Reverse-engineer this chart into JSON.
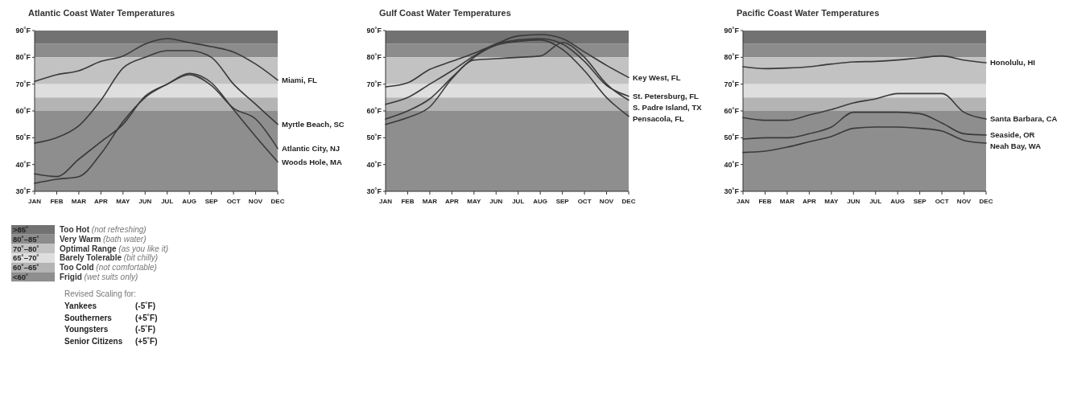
{
  "chart_data": [
    {
      "type": "line",
      "title": "Atlantic Coast Water Temperatures",
      "categories": [
        "JAN",
        "FEB",
        "MAR",
        "APR",
        "MAY",
        "JUN",
        "JUL",
        "AUG",
        "SEP",
        "OCT",
        "NOV",
        "DEC"
      ],
      "ylim": [
        30,
        90
      ],
      "yticks": [
        {
          "value": 30,
          "label": "30˚F"
        },
        {
          "value": 40,
          "label": "40˚F"
        },
        {
          "value": 50,
          "label": "50˚F"
        },
        {
          "value": 60,
          "label": "60˚F"
        },
        {
          "value": 70,
          "label": "70˚F"
        },
        {
          "value": 80,
          "label": "80˚F"
        },
        {
          "value": 90,
          "label": "90˚F"
        }
      ],
      "bands": [
        {
          "axis": "y",
          "from": 85,
          "to": 90,
          "label": ">85˚",
          "color": "#727272"
        },
        {
          "axis": "y",
          "from": 80,
          "to": 85,
          "label": "80˚–85˚",
          "color": "#8c8c8c"
        },
        {
          "axis": "y",
          "from": 70,
          "to": 80,
          "label": "70˚–80˚",
          "color": "#c2c2c2"
        },
        {
          "axis": "y",
          "from": 65,
          "to": 70,
          "label": "65˚–70˚",
          "color": "#dedede"
        },
        {
          "axis": "y",
          "from": 60,
          "to": 65,
          "label": "60˚–65˚",
          "color": "#b4b4b4"
        },
        {
          "axis": "y",
          "from": 30,
          "to": 60,
          "label": "<60˚",
          "color": "#8e8e8e"
        }
      ],
      "series": [
        {
          "name": "Miami, FL",
          "color": "#3a3a3a",
          "values": [
            71,
            73.5,
            75,
            78.5,
            80.5,
            85,
            87,
            85.5,
            84,
            82,
            77.5,
            71.5
          ]
        },
        {
          "name": "Myrtle Beach, SC",
          "color": "#3a3a3a",
          "values": [
            48,
            50,
            54.5,
            64,
            76,
            80,
            82.5,
            82.5,
            80,
            70,
            62.5,
            55
          ]
        },
        {
          "name": "Atlantic City, NJ",
          "color": "#3a3a3a",
          "values": [
            36.5,
            35.5,
            42,
            48.5,
            55,
            65.5,
            70,
            73.5,
            69.5,
            61,
            57,
            46
          ]
        },
        {
          "name": "Woods Hole, MA",
          "color": "#3a3a3a",
          "values": [
            33,
            34.5,
            35.5,
            44,
            56,
            65,
            70,
            74,
            70.5,
            60.5,
            50.5,
            41
          ]
        }
      ]
    },
    {
      "type": "line",
      "title": "Gulf Coast Water Temperatures",
      "categories": [
        "JAN",
        "FEB",
        "MAR",
        "APR",
        "MAY",
        "JUN",
        "JUL",
        "AUG",
        "SEP",
        "OCT",
        "NOV",
        "DEC"
      ],
      "ylim": [
        30,
        90
      ],
      "yticks": [
        {
          "value": 30,
          "label": "30˚F"
        },
        {
          "value": 40,
          "label": "40˚F"
        },
        {
          "value": 50,
          "label": "50˚F"
        },
        {
          "value": 60,
          "label": "60˚F"
        },
        {
          "value": 70,
          "label": "70˚F"
        },
        {
          "value": 80,
          "label": "80˚F"
        },
        {
          "value": 90,
          "label": "90˚F"
        }
      ],
      "bands": [
        {
          "axis": "y",
          "from": 85,
          "to": 90,
          "color": "#727272"
        },
        {
          "axis": "y",
          "from": 80,
          "to": 85,
          "color": "#8c8c8c"
        },
        {
          "axis": "y",
          "from": 70,
          "to": 80,
          "color": "#c2c2c2"
        },
        {
          "axis": "y",
          "from": 65,
          "to": 70,
          "color": "#dedede"
        },
        {
          "axis": "y",
          "from": 60,
          "to": 65,
          "color": "#b4b4b4"
        },
        {
          "axis": "y",
          "from": 30,
          "to": 60,
          "color": "#8e8e8e"
        }
      ],
      "series": [
        {
          "name": "Key West, FL",
          "color": "#3a3a3a",
          "values": [
            69,
            70.5,
            75.5,
            78.5,
            81.5,
            85,
            88,
            88.5,
            87,
            82,
            77,
            72.5
          ]
        },
        {
          "name": "St. Petersburg, FL",
          "color": "#3a3a3a",
          "values": [
            62.5,
            65,
            70,
            75,
            80.5,
            85,
            86.5,
            87,
            85,
            78.5,
            69.5,
            65.5
          ]
        },
        {
          "name": "S. Padre Island, TX",
          "color": "#3a3a3a",
          "values": [
            55,
            57.5,
            61.5,
            72,
            79,
            79.5,
            80,
            80.5,
            85.5,
            80,
            70,
            64
          ]
        },
        {
          "name": "Pensacola, FL",
          "color": "#3a3a3a",
          "values": [
            57,
            60,
            64.5,
            72.5,
            80,
            84.5,
            86,
            86.5,
            83,
            75,
            65,
            58
          ]
        }
      ]
    },
    {
      "type": "line",
      "title": "Pacific Coast Water Temperatures",
      "categories": [
        "JAN",
        "FEB",
        "MAR",
        "APR",
        "MAY",
        "JUN",
        "JUL",
        "AUG",
        "SEP",
        "OCT",
        "NOV",
        "DEC"
      ],
      "ylim": [
        30,
        90
      ],
      "yticks": [
        {
          "value": 30,
          "label": "30˚F"
        },
        {
          "value": 40,
          "label": "40˚F"
        },
        {
          "value": 50,
          "label": "50˚F"
        },
        {
          "value": 60,
          "label": "60˚F"
        },
        {
          "value": 70,
          "label": "70˚F"
        },
        {
          "value": 80,
          "label": "80˚F"
        },
        {
          "value": 90,
          "label": "90˚F"
        }
      ],
      "bands": [
        {
          "axis": "y",
          "from": 85,
          "to": 90,
          "color": "#727272"
        },
        {
          "axis": "y",
          "from": 80,
          "to": 85,
          "color": "#8c8c8c"
        },
        {
          "axis": "y",
          "from": 70,
          "to": 80,
          "color": "#c2c2c2"
        },
        {
          "axis": "y",
          "from": 65,
          "to": 70,
          "color": "#dedede"
        },
        {
          "axis": "y",
          "from": 60,
          "to": 65,
          "color": "#b4b4b4"
        },
        {
          "axis": "y",
          "from": 30,
          "to": 60,
          "color": "#8e8e8e"
        }
      ],
      "series": [
        {
          "name": "Honolulu, HI",
          "color": "#3a3a3a",
          "values": [
            76.5,
            75.8,
            76,
            76.5,
            77.5,
            78.3,
            78.5,
            79,
            79.8,
            80.5,
            79,
            78
          ]
        },
        {
          "name": "Santa Barbara, CA",
          "color": "#3a3a3a",
          "values": [
            57.5,
            56.5,
            56.5,
            58.5,
            60.5,
            63,
            64.5,
            66.5,
            66.5,
            66.5,
            59.5,
            57
          ]
        },
        {
          "name": "Seaside, OR",
          "color": "#3a3a3a",
          "values": [
            49.5,
            50,
            50,
            51.5,
            54,
            59.5,
            59.5,
            59.5,
            59,
            55.5,
            51.5,
            51
          ]
        },
        {
          "name": "Neah Bay, WA",
          "color": "#3a3a3a",
          "values": [
            44.5,
            45,
            46.5,
            48.5,
            50.5,
            53.5,
            54,
            54,
            53.5,
            52.5,
            49,
            48
          ]
        }
      ]
    },
    {
      "type": "other",
      "annotations": [
        "Too Hot (not refreshing)",
        "Very Warm (bath water)",
        "Optimal Range (as you like it)",
        "Barely Tolerable (bit chilly)",
        "Too Cold (not comfortable)",
        "Frigid (wet suits only)",
        "Revised Scaling for:",
        "Yankees",
        "(-5˚F)",
        "Southerners",
        "(+5˚F)",
        "Youngsters",
        "(-5˚F)",
        "Senior Citizens",
        "(+5˚F)"
      ]
    }
  ]
}
